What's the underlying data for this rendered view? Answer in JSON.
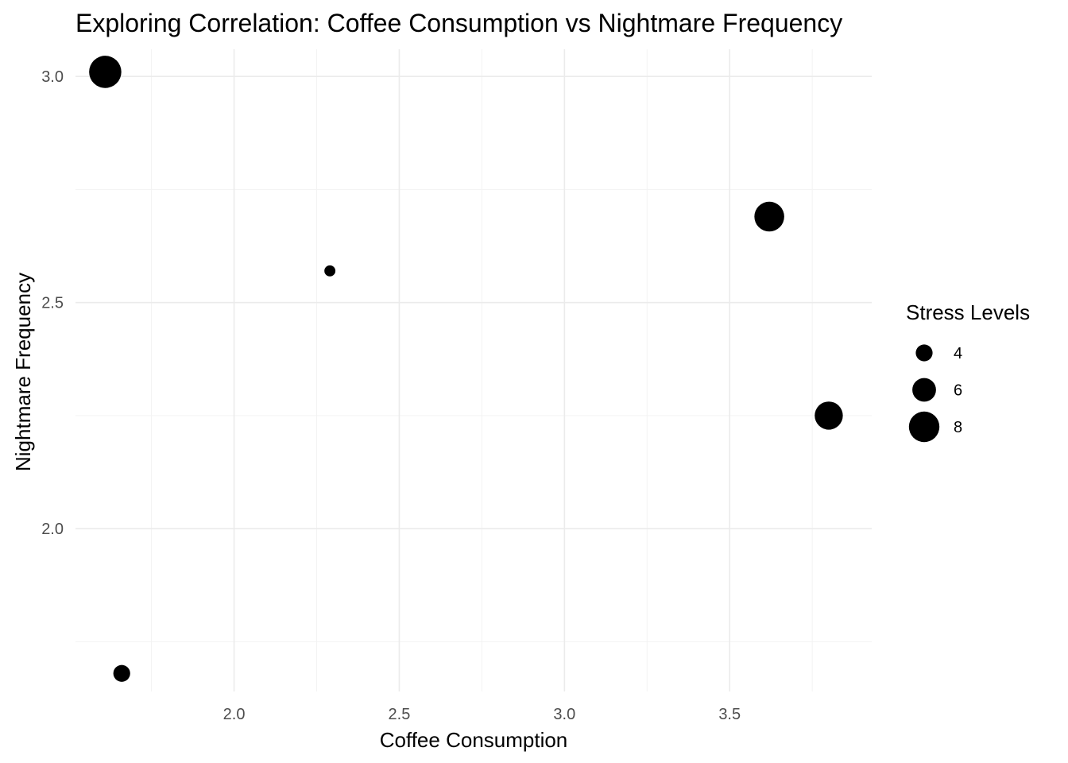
{
  "chart_data": {
    "type": "scatter",
    "title": "Exploring Correlation: Coffee Consumption vs Nightmare Frequency",
    "xlabel": "Coffee Consumption",
    "ylabel": "Nightmare Frequency",
    "xlim": [
      1.52,
      3.93
    ],
    "ylim": [
      1.64,
      3.06
    ],
    "x_ticks": [
      2.0,
      2.5,
      3.0,
      3.5
    ],
    "x_tick_labels": [
      "2.0",
      "2.5",
      "3.0",
      "3.5"
    ],
    "y_ticks": [
      2.0,
      2.5,
      3.0
    ],
    "y_tick_labels": [
      "2.0",
      "2.5",
      "3.0"
    ],
    "grid": true,
    "points": [
      {
        "x": 1.61,
        "y": 3.01,
        "size": 8.5
      },
      {
        "x": 2.29,
        "y": 2.57,
        "size": 2.3
      },
      {
        "x": 3.62,
        "y": 2.69,
        "size": 7.8
      },
      {
        "x": 3.8,
        "y": 2.25,
        "size": 7.3
      },
      {
        "x": 1.66,
        "y": 1.68,
        "size": 4.0
      }
    ],
    "size_legend": {
      "title": "Stress Levels",
      "position": "right",
      "entries": [
        {
          "label": "4",
          "value": 4
        },
        {
          "label": "6",
          "value": 6
        },
        {
          "label": "8",
          "value": 8
        }
      ]
    },
    "colors": {
      "points": "#000000",
      "grid": "#ebebeb",
      "tick_text": "#4d4d4d"
    }
  }
}
